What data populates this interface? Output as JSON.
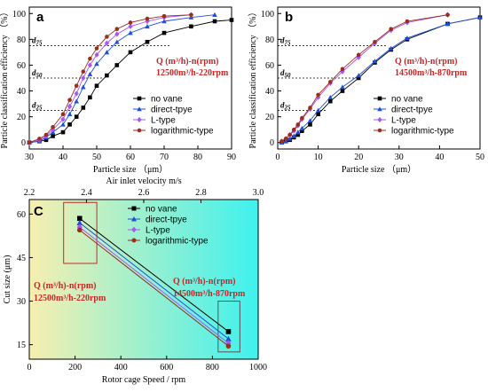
{
  "colors": {
    "no_vane": "#000000",
    "direct": "#1f4fd6",
    "ltype": "#a855f7",
    "log": "#9b2d1a",
    "qlabel": "#c62828",
    "box": "#c62828"
  },
  "chart_data": [
    {
      "id": "a",
      "type": "line",
      "panel_label": "a",
      "xlabel": "Particle size （μm）",
      "ylabel": "Particle classification efficiency （%）",
      "xlim": [
        30,
        90
      ],
      "ylim": [
        -5,
        105
      ],
      "xticks": [
        "30",
        "40",
        "50",
        "60",
        "70",
        "80",
        "90"
      ],
      "yticks": [
        "0",
        "20",
        "40",
        "60",
        "80",
        "100"
      ],
      "d_labels": [
        {
          "text": "d75",
          "y": 75
        },
        {
          "text": "d50",
          "y": 50
        },
        {
          "text": "d25",
          "y": 25
        }
      ],
      "annotation": [
        "Q (m³/h)-n(rpm)",
        "12500m³/h-220rpm"
      ],
      "series": [
        {
          "name": "no vane",
          "marker": "square",
          "x": [
            30,
            33,
            35,
            37,
            40,
            42,
            44,
            46,
            48,
            50,
            53,
            56,
            60,
            65,
            70,
            78,
            85,
            90
          ],
          "y": [
            0,
            1,
            2,
            5,
            8,
            14,
            20,
            27,
            35,
            44,
            52,
            60,
            70,
            78,
            85,
            90,
            94,
            95
          ]
        },
        {
          "name": "direct-tpye",
          "marker": "triangle",
          "x": [
            30,
            33,
            35,
            37,
            40,
            42,
            44,
            46,
            48,
            50,
            53,
            56,
            60,
            65,
            70,
            78,
            85
          ],
          "y": [
            0,
            1,
            4,
            8,
            14,
            22,
            32,
            43,
            53,
            61,
            70,
            78,
            85,
            90,
            94,
            97,
            99
          ]
        },
        {
          "name": "L-type",
          "marker": "diamond",
          "x": [
            30,
            33,
            35,
            37,
            40,
            42,
            44,
            46,
            48,
            50,
            53,
            56,
            60,
            65,
            70,
            78
          ],
          "y": [
            0,
            2,
            5,
            10,
            18,
            28,
            38,
            50,
            60,
            68,
            77,
            84,
            90,
            94,
            97,
            99
          ]
        },
        {
          "name": "logarithmic-type",
          "marker": "circle",
          "x": [
            30,
            33,
            35,
            37,
            40,
            42,
            44,
            46,
            48,
            50,
            53,
            56,
            60,
            65,
            70,
            78
          ],
          "y": [
            0,
            3,
            6,
            12,
            22,
            33,
            44,
            55,
            65,
            73,
            82,
            88,
            93,
            96,
            98,
            99
          ]
        }
      ]
    },
    {
      "id": "b",
      "type": "line",
      "panel_label": "b",
      "xlabel": "Particle size （μm）",
      "ylabel": "Particle classification efficiency （%）",
      "xlim": [
        0,
        50
      ],
      "ylim": [
        -5,
        105
      ],
      "xticks": [
        "0",
        "10",
        "20",
        "30",
        "40",
        "50"
      ],
      "yticks": [
        "0",
        "20",
        "40",
        "60",
        "80",
        "100"
      ],
      "d_labels": [
        {
          "text": "d75",
          "y": 75
        },
        {
          "text": "d50",
          "y": 50
        },
        {
          "text": "d25",
          "y": 25
        }
      ],
      "annotation": [
        "Q (m³/h)-n(rpm)",
        "14500m³/h-870rpm"
      ],
      "series": [
        {
          "name": "no vane",
          "marker": "square",
          "x": [
            1,
            2,
            3,
            4,
            5,
            6,
            8,
            10,
            13,
            16,
            20,
            24,
            28,
            32,
            42,
            50
          ],
          "y": [
            0,
            1,
            2,
            4,
            6,
            9,
            14,
            22,
            32,
            40,
            50,
            62,
            72,
            80,
            92,
            97
          ]
        },
        {
          "name": "direct-tpye",
          "marker": "triangle",
          "x": [
            1,
            2,
            3,
            4,
            5,
            6,
            8,
            10,
            13,
            16,
            20,
            24,
            28,
            32,
            42,
            50
          ],
          "y": [
            0,
            1,
            3,
            5,
            8,
            11,
            17,
            25,
            35,
            43,
            52,
            63,
            73,
            81,
            92,
            97
          ]
        },
        {
          "name": "L-type",
          "marker": "diamond",
          "x": [
            1,
            2,
            3,
            4,
            5,
            6,
            8,
            10,
            13,
            16,
            20,
            24,
            28,
            32,
            42
          ],
          "y": [
            1,
            3,
            6,
            9,
            13,
            18,
            26,
            35,
            46,
            55,
            66,
            77,
            87,
            93,
            99
          ]
        },
        {
          "name": "logarithmic-type",
          "marker": "circle",
          "x": [
            1,
            2,
            3,
            4,
            5,
            6,
            8,
            10,
            13,
            16,
            20,
            24,
            28,
            32,
            42
          ],
          "y": [
            1,
            3,
            6,
            10,
            14,
            19,
            27,
            37,
            47,
            57,
            68,
            78,
            88,
            94,
            99
          ]
        }
      ]
    },
    {
      "id": "c",
      "type": "line",
      "panel_label": "C",
      "xlabel": "Rotor cage Speed / rpm",
      "ylabel": "Cut size (μm)",
      "top_xlabel": "Air inlet velocity  m/s",
      "xlim": [
        0,
        1000
      ],
      "ylim": [
        10,
        65
      ],
      "top_xlim": [
        2.2,
        3.0
      ],
      "xticks": [
        "0",
        "200",
        "400",
        "600",
        "800",
        "1000"
      ],
      "yticks": [
        "15",
        "30",
        "45",
        "60"
      ],
      "top_xticks": [
        "2.2",
        "2.4",
        "2.6",
        "2.8",
        "3.0"
      ],
      "background_gradient": [
        "#f7efb0",
        "#3ff1ee"
      ],
      "annotations": [
        {
          "lines": [
            "Q (m³/h)-n(rpm)",
            "12500m³/h-220rpm"
          ]
        },
        {
          "lines": [
            "Q (m³/h)-n(rpm)",
            "14500m³/h-870rpm"
          ]
        }
      ],
      "series": [
        {
          "name": "no vane",
          "marker": "square",
          "x": [
            220,
            870
          ],
          "y": [
            58.5,
            19.5
          ]
        },
        {
          "name": "direct-tpye",
          "marker": "triangle",
          "x": [
            220,
            870
          ],
          "y": [
            57,
            17
          ]
        },
        {
          "name": "L-type",
          "marker": "diamond",
          "x": [
            220,
            870
          ],
          "y": [
            55.5,
            15.5
          ]
        },
        {
          "name": "logarithmic-type",
          "marker": "circle",
          "x": [
            220,
            870
          ],
          "y": [
            54.5,
            14.5
          ]
        }
      ]
    }
  ]
}
